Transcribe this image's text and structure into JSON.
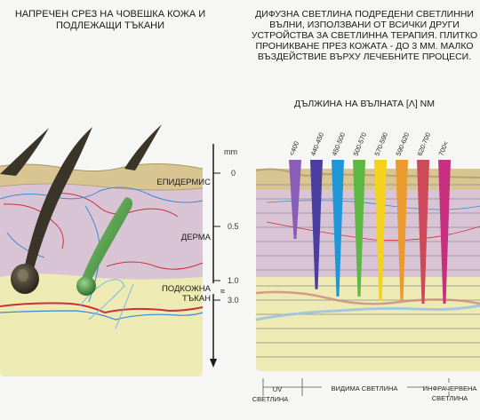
{
  "left_title": "НАПРЕЧЕН СРЕЗ НА ЧОВЕШКА КОЖА И ПОДЛЕЖАЩИ ТЪКАНИ",
  "right_title": "ДИФУЗНА СВЕТЛИНА ПОДРЕДЕНИ СВЕТЛИННИ ВЪЛНИ, ИЗПОЛЗВАНИ ОТ ВСИЧКИ ДРУГИ УСТРОЙСТВА ЗА СВЕТЛИННА ТЕРАПИЯ. ПЛИТКО ПРОНИКВАНЕ ПРЕЗ КОЖАТА - ДО 3 ММ. МАЛКО ВЪЗДЕЙСТВИЕ ВЪРХУ ЛЕЧЕБНИТЕ ПРОЦЕСИ.",
  "wavelength_heading": "ДЪЛЖИНА НА ВЪЛНАТА [λ] NM",
  "layers": {
    "epidermis": "ЕПИДЕРМИС",
    "dermis": "ДЕРМА",
    "subcutis_1": "ПОДКОЖНА",
    "subcutis_2": "ТЪКАН"
  },
  "scale": {
    "unit": "mm",
    "marks": [
      "0",
      "0.5",
      "1.0",
      "3.0"
    ],
    "break_symbol": "≈"
  },
  "wavelengths": [
    {
      "label": "<400",
      "color": "#8b5db8",
      "depth": 0.55
    },
    {
      "label": "440-450",
      "color": "#4a3f9f",
      "depth": 0.9
    },
    {
      "label": "450-500",
      "color": "#1e96d8",
      "depth": 0.95
    },
    {
      "label": "500-570",
      "color": "#5cb843",
      "depth": 0.95
    },
    {
      "label": "570-590",
      "color": "#f2d21c",
      "depth": 0.98
    },
    {
      "label": "590-620",
      "color": "#ea9a2e",
      "depth": 0.98
    },
    {
      "label": "620-700",
      "color": "#cc4a5a",
      "depth": 1.0
    },
    {
      "label": "700<",
      "color": "#c6307e",
      "depth": 1.0
    }
  ],
  "spectrum": {
    "uv": "UV СВЕТЛИНА",
    "visible": "ВИДИМА СВЕТЛИНА",
    "infrared_1": "ИНФРАЧЕРВЕНА",
    "infrared_2": "СВЕТЛИНА"
  },
  "colors": {
    "epidermis": "#d9c592",
    "dermis": "#d9c4d6",
    "subcutis": "#eeeab4",
    "hair": "#3a3528",
    "gland": "#3c8f3c"
  }
}
